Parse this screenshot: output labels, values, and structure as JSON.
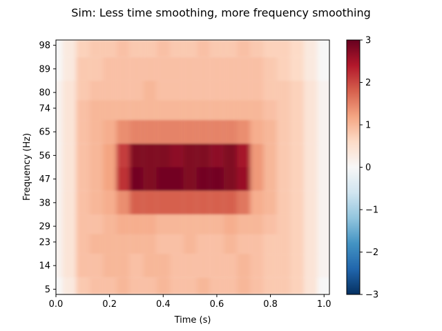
{
  "chart_data": {
    "type": "heatmap",
    "title": "Sim: Less time smoothing, more frequency smoothing",
    "xlabel": "Time (s)",
    "ylabel": "Frequency (Hz)",
    "xlim": [
      0.0,
      1.02
    ],
    "ylim": [
      3,
      100
    ],
    "x_ticks": [
      0.0,
      0.2,
      0.4,
      0.6,
      0.8,
      1.0
    ],
    "x_tick_labels": [
      "0.0",
      "0.2",
      "0.4",
      "0.6",
      "0.8",
      "1.0"
    ],
    "y_ticks": [
      5,
      14,
      23,
      29,
      38,
      47,
      56,
      65,
      74,
      80,
      89,
      98
    ],
    "y_tick_labels": [
      "5",
      "14",
      "23",
      "29",
      "38",
      "47",
      "56",
      "65",
      "74",
      "80",
      "89",
      "98"
    ],
    "colormap": "RdBu_r",
    "colorbar": {
      "vmin": -3,
      "vmax": 3,
      "ticks": [
        -3,
        -2,
        -1,
        0,
        1,
        2,
        3
      ],
      "tick_labels": [
        "−3",
        "−2",
        "−1",
        "0",
        "1",
        "2",
        "3"
      ]
    },
    "grid": false,
    "time_bins": [
      0.0,
      0.05,
      0.1,
      0.15,
      0.2,
      0.25,
      0.3,
      0.35,
      0.4,
      0.45,
      0.5,
      0.55,
      0.6,
      0.65,
      0.7,
      0.75,
      0.8,
      0.85,
      0.9,
      0.95,
      1.0
    ],
    "freq_bins": [
      5,
      14,
      23,
      29,
      38,
      47,
      56,
      65,
      74,
      80,
      89,
      98
    ],
    "values": [
      [
        0.0,
        0.3,
        0.8,
        0.9,
        0.9,
        1.0,
        0.9,
        0.9,
        1.0,
        0.9,
        0.9,
        1.0,
        0.9,
        0.9,
        1.0,
        0.9,
        0.8,
        0.8,
        0.7,
        0.4,
        0.0
      ],
      [
        0.1,
        0.4,
        0.9,
        0.9,
        1.0,
        1.0,
        0.9,
        1.0,
        1.0,
        0.9,
        0.9,
        0.9,
        0.9,
        0.9,
        1.0,
        0.9,
        0.8,
        0.8,
        0.7,
        0.4,
        0.1
      ],
      [
        0.1,
        0.4,
        0.9,
        1.0,
        1.0,
        1.0,
        1.0,
        1.0,
        0.9,
        0.9,
        1.0,
        0.9,
        0.9,
        1.0,
        0.9,
        0.9,
        0.8,
        0.8,
        0.7,
        0.4,
        0.1
      ],
      [
        0.1,
        0.4,
        0.9,
        0.9,
        1.0,
        1.1,
        1.1,
        1.1,
        1.0,
        1.0,
        1.0,
        1.0,
        1.0,
        1.1,
        1.0,
        1.0,
        0.9,
        0.8,
        0.7,
        0.4,
        0.1
      ],
      [
        0.1,
        0.4,
        0.9,
        1.0,
        1.1,
        1.4,
        1.8,
        1.8,
        1.8,
        1.8,
        1.8,
        1.8,
        1.8,
        1.8,
        1.6,
        1.1,
        1.0,
        0.8,
        0.7,
        0.4,
        0.1
      ],
      [
        0.1,
        0.4,
        0.9,
        1.0,
        1.2,
        2.2,
        2.9,
        2.8,
        2.9,
        2.9,
        2.8,
        2.9,
        2.9,
        2.8,
        2.6,
        1.3,
        1.0,
        0.8,
        0.7,
        0.4,
        0.1
      ],
      [
        0.1,
        0.4,
        0.9,
        1.0,
        1.2,
        2.1,
        2.8,
        2.8,
        2.8,
        2.7,
        2.8,
        2.8,
        2.7,
        2.8,
        2.5,
        1.3,
        1.0,
        0.8,
        0.7,
        0.4,
        0.1
      ],
      [
        0.1,
        0.4,
        0.9,
        1.0,
        1.1,
        1.4,
        1.5,
        1.5,
        1.5,
        1.5,
        1.5,
        1.5,
        1.5,
        1.5,
        1.4,
        1.1,
        1.0,
        0.8,
        0.7,
        0.4,
        0.1
      ],
      [
        0.1,
        0.4,
        0.9,
        1.0,
        1.0,
        1.0,
        1.0,
        1.0,
        1.0,
        1.0,
        1.0,
        1.0,
        1.0,
        1.0,
        1.0,
        1.0,
        0.9,
        0.8,
        0.7,
        0.4,
        0.1
      ],
      [
        0.1,
        0.4,
        0.8,
        0.9,
        0.9,
        0.9,
        0.9,
        1.0,
        0.9,
        0.9,
        0.9,
        0.9,
        0.9,
        0.9,
        0.9,
        0.9,
        0.8,
        0.8,
        0.7,
        0.4,
        0.1
      ],
      [
        0.0,
        0.3,
        0.8,
        0.8,
        0.9,
        0.9,
        0.9,
        0.9,
        0.9,
        0.9,
        0.9,
        0.9,
        0.9,
        0.9,
        0.9,
        0.9,
        0.8,
        0.7,
        0.6,
        0.3,
        0.0
      ],
      [
        0.0,
        0.3,
        0.7,
        0.8,
        0.8,
        0.9,
        0.8,
        0.8,
        0.9,
        0.8,
        0.8,
        0.9,
        0.8,
        0.8,
        0.9,
        0.8,
        0.7,
        0.7,
        0.6,
        0.3,
        0.0
      ]
    ]
  }
}
